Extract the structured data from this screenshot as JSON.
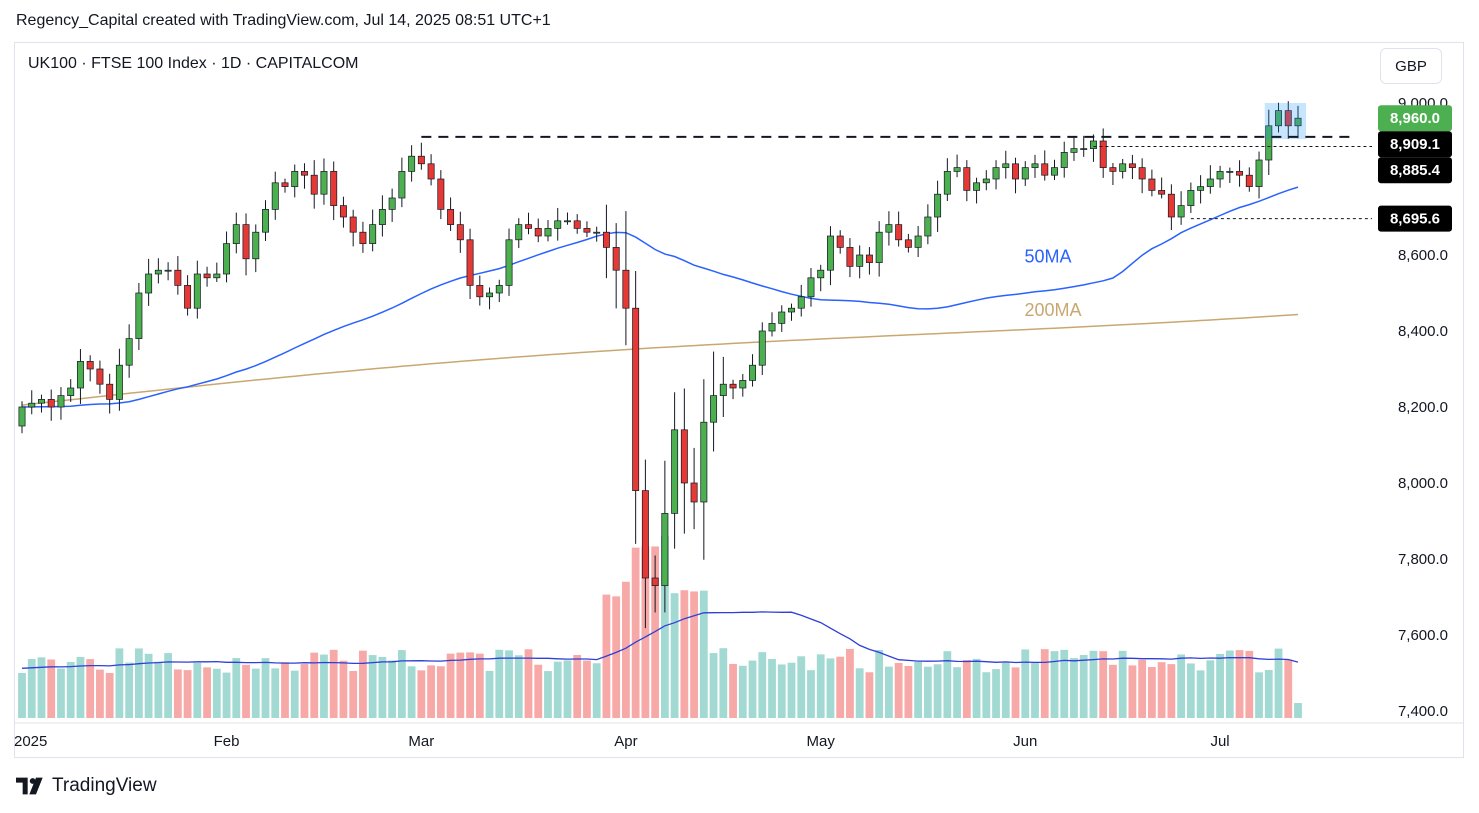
{
  "header": {
    "attribution": "Regency_Capital created with TradingView.com, Jul 14, 2025 08:51 UTC+1"
  },
  "symbol": {
    "line": "UK100 · FTSE 100 Index · 1D · CAPITALCOM"
  },
  "currency": {
    "label": "GBP"
  },
  "footer": {
    "brand": "TradingView"
  },
  "colors": {
    "up": "#26a69a",
    "down": "#ef5350",
    "candle_up": "#4caf50",
    "candle_down": "#e53935",
    "vol_up": "#a3d9d3",
    "vol_down": "#f7a9a7",
    "ma50": "#2962ff",
    "ma200": "#c8a870",
    "tag_green": "#4caf50",
    "tag_black": "#000000"
  },
  "chart_data": {
    "type": "candlestick",
    "symbol": "UK100",
    "interval": "1D",
    "ylim": [
      7350,
      9050
    ],
    "y_ticks": [
      {
        "value": 9000,
        "label": "9,000.0"
      },
      {
        "value": 8600,
        "label": "8,600.0"
      },
      {
        "value": 8400,
        "label": "8,400.0"
      },
      {
        "value": 8200,
        "label": "8,200.0"
      },
      {
        "value": 8000,
        "label": "8,000.0"
      },
      {
        "value": 7800,
        "label": "7,800.0"
      },
      {
        "value": 7600,
        "label": "7,600.0"
      },
      {
        "value": 7400,
        "label": "7,400.0"
      }
    ],
    "x_ticks": [
      {
        "label": "2025",
        "bar": 0
      },
      {
        "label": "Feb",
        "bar": 21
      },
      {
        "label": "Mar",
        "bar": 41
      },
      {
        "label": "Apr",
        "bar": 62
      },
      {
        "label": "May",
        "bar": 82
      },
      {
        "label": "Jun",
        "bar": 103
      },
      {
        "label": "Jul",
        "bar": 123
      }
    ],
    "price_tags": [
      {
        "value": 8960.0,
        "label": "8,960.0",
        "style": "green"
      },
      {
        "value": 8909.1,
        "label": "8,909.1",
        "style": "black"
      },
      {
        "value": 8885.4,
        "label": "8,885.4",
        "style": "black"
      },
      {
        "value": 8695.6,
        "label": "8,695.6",
        "style": "black"
      }
    ],
    "levels": [
      {
        "value": 8911,
        "style": "dashed-bold",
        "from_bar": 41
      },
      {
        "value": 8885.4,
        "style": "dotted",
        "from_bar": 110
      },
      {
        "value": 8695.6,
        "style": "dotted",
        "from_bar": 120
      }
    ],
    "annotations": [
      {
        "text": "50MA",
        "bar": 106,
        "value": 8580,
        "color": "#2962ff"
      },
      {
        "text": "200MA",
        "bar": 106,
        "value": 8440,
        "color": "#c8a870"
      }
    ],
    "close": [
      8200,
      8210,
      8220,
      8200,
      8230,
      8250,
      8320,
      8300,
      8260,
      8220,
      8310,
      8380,
      8500,
      8550,
      8560,
      8560,
      8520,
      8460,
      8550,
      8540,
      8550,
      8630,
      8680,
      8590,
      8660,
      8720,
      8790,
      8780,
      8820,
      8810,
      8760,
      8820,
      8730,
      8700,
      8660,
      8630,
      8680,
      8720,
      8750,
      8820,
      8860,
      8840,
      8800,
      8720,
      8680,
      8640,
      8520,
      8490,
      8500,
      8520,
      8640,
      8680,
      8670,
      8650,
      8670,
      8690,
      8690,
      8670,
      8660,
      8660,
      8620,
      8560,
      8460,
      7980,
      7750,
      7730,
      7920,
      8140,
      8000,
      7950,
      8160,
      8230,
      8260,
      8250,
      8270,
      8310,
      8400,
      8420,
      8450,
      8460,
      8490,
      8540,
      8560,
      8650,
      8620,
      8570,
      8600,
      8580,
      8660,
      8680,
      8640,
      8620,
      8650,
      8700,
      8760,
      8820,
      8830,
      8770,
      8790,
      8800,
      8830,
      8840,
      8800,
      8830,
      8840,
      8810,
      8830,
      8870,
      8880,
      8880,
      8900,
      8830,
      8820,
      8840,
      8830,
      8800,
      8770,
      8760,
      8700,
      8730,
      8770,
      8780,
      8800,
      8820,
      8820,
      8810,
      8780,
      8850,
      8940,
      8980,
      8940,
      8960
    ]
  }
}
